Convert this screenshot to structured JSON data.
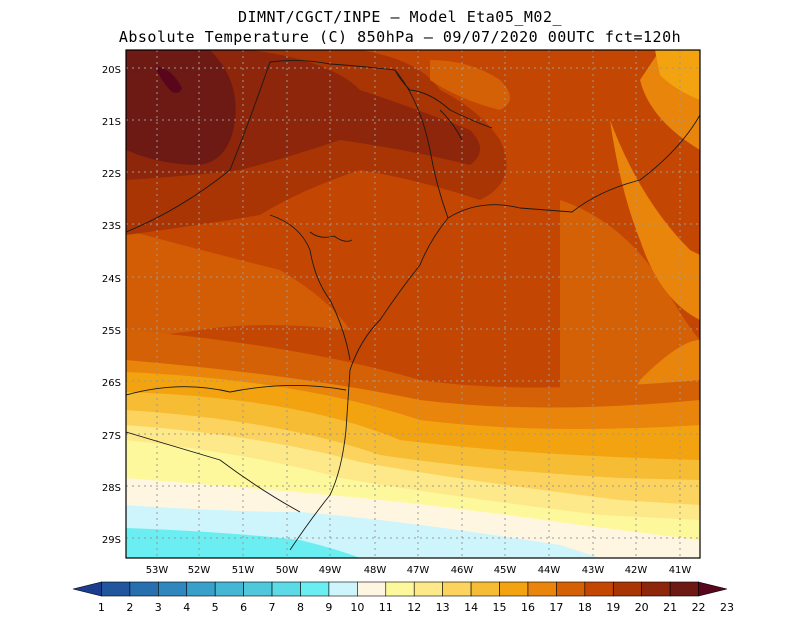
{
  "title": {
    "line1": "DIMNT/CGCT/INPE –  Model Eta05_M02_",
    "line2": "Absolute Temperature (C) 850hPa –  09/07/2020 00UTC fct=120h"
  },
  "axes": {
    "lat_labels": [
      "20S",
      "21S",
      "22S",
      "23S",
      "24S",
      "25S",
      "26S",
      "27S",
      "28S",
      "29S"
    ],
    "lon_labels": [
      "53W",
      "52W",
      "51W",
      "50W",
      "49W",
      "48W",
      "47W",
      "46W",
      "45W",
      "44W",
      "43W",
      "42W",
      "41W"
    ]
  },
  "colorbar": {
    "labels": [
      "1",
      "2",
      "3",
      "4",
      "5",
      "6",
      "7",
      "8",
      "9",
      "10",
      "11",
      "12",
      "13",
      "14",
      "15",
      "16",
      "17",
      "18",
      "19",
      "20",
      "21",
      "22",
      "23"
    ],
    "colors": [
      "#1b3c8f",
      "#21569e",
      "#276fae",
      "#2f87bd",
      "#39a0c9",
      "#45b6d3",
      "#50c8dc",
      "#5cdae6",
      "#6aeef2",
      "#cdf5fb",
      "#fff6e1",
      "#fef89c",
      "#fde989",
      "#fbd35e",
      "#f6bc33",
      "#f2a30f",
      "#e9850b",
      "#d56106",
      "#c44603",
      "#a93504",
      "#8d260a",
      "#6e1a14",
      "#59051c"
    ]
  }
}
